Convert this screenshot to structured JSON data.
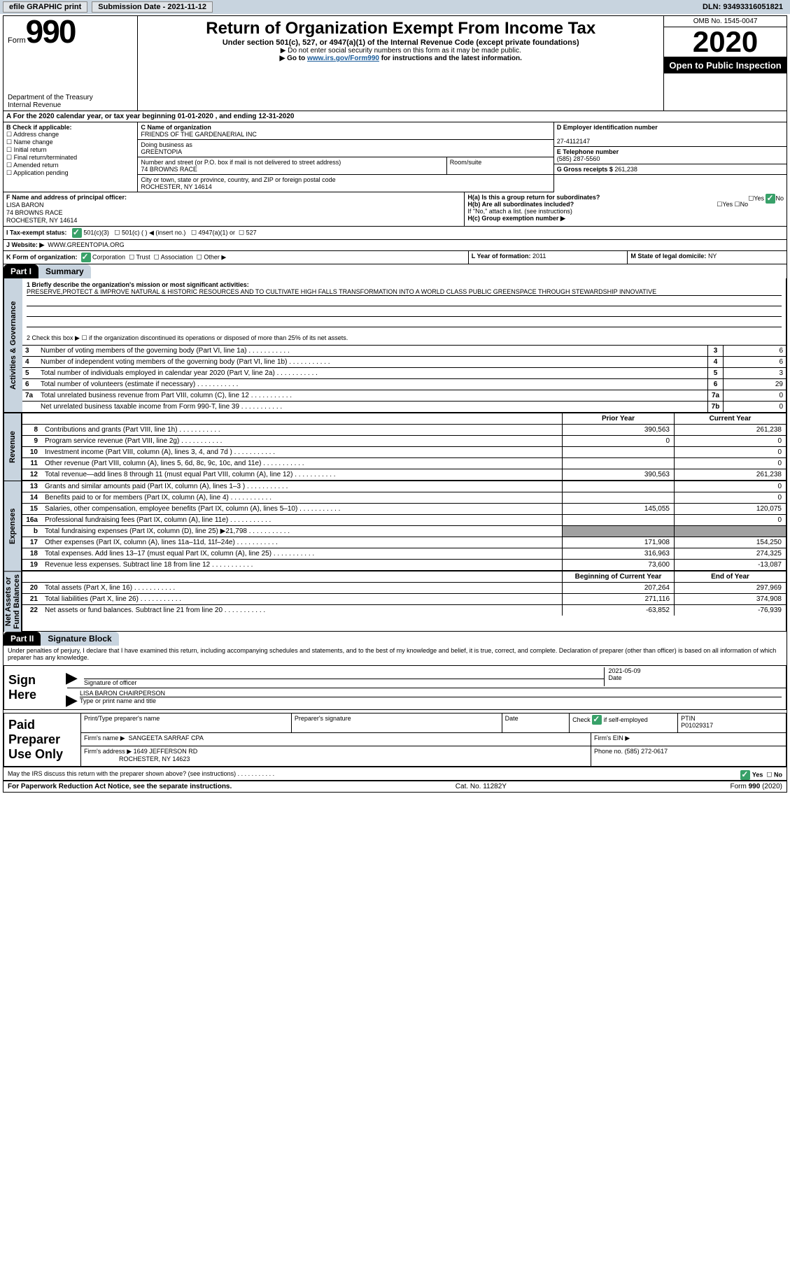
{
  "top": {
    "efile": "efile GRAPHIC print",
    "subdate_label": "Submission Date -",
    "subdate": "2021-11-12",
    "dln_label": "DLN:",
    "dln": "93493316051821"
  },
  "header": {
    "form_word": "Form",
    "form_num": "990",
    "dept": "Department of the Treasury\nInternal Revenue",
    "title": "Return of Organization Exempt From Income Tax",
    "subtitle": "Under section 501(c), 527, or 4947(a)(1) of the Internal Revenue Code (except private foundations)",
    "note1": "▶ Do not enter social security numbers on this form as it may be made public.",
    "note2a": "▶ Go to ",
    "note2link": "www.irs.gov/Form990",
    "note2b": " for instructions and the latest information.",
    "omb": "OMB No. 1545-0047",
    "year": "2020",
    "open": "Open to Public Inspection"
  },
  "period": {
    "line": "A For the 2020 calendar year, or tax year beginning 01-01-2020   , and ending 12-31-2020"
  },
  "boxB": {
    "intro": "B Check if applicable:",
    "opts": [
      "Address change",
      "Name change",
      "Initial return",
      "Final return/terminated",
      "Amended return",
      "Application pending"
    ]
  },
  "boxC": {
    "label": "C Name of organization",
    "name": "FRIENDS OF THE GARDENAERIAL INC",
    "dba_label": "Doing business as",
    "dba": "GREENTOPIA",
    "addr_label": "Number and street (or P.O. box if mail is not delivered to street address)",
    "room_label": "Room/suite",
    "addr": "74 BROWNS RACE",
    "city_label": "City or town, state or province, country, and ZIP or foreign postal code",
    "city": "ROCHESTER, NY  14614"
  },
  "boxD": {
    "label": "D Employer identification number",
    "val": "27-4112147"
  },
  "boxE": {
    "label": "E Telephone number",
    "val": "(585) 287-5560"
  },
  "boxG": {
    "label": "G Gross receipts $",
    "val": "261,238"
  },
  "boxF": {
    "label": "F Name and address of principal officer:",
    "name": "LISA BARON",
    "addr": "74 BROWNS RACE\nROCHESTER, NY  14614"
  },
  "boxH": {
    "a": "H(a)  Is this a group return for subordinates?",
    "a_yes": "Yes",
    "a_no": "No",
    "b": "H(b)  Are all subordinates included?",
    "b_yes": "Yes",
    "b_no": "No",
    "b_note": "If \"No,\" attach a list. (see instructions)",
    "c": "H(c)  Group exemption number ▶"
  },
  "boxI": {
    "label": "I    Tax-exempt status:",
    "o1": "501(c)(3)",
    "o2": "501(c) (  ) ◀ (insert no.)",
    "o3": "4947(a)(1) or",
    "o4": "527"
  },
  "boxJ": {
    "label": "J    Website: ▶",
    "val": "WWW.GREENTOPIA.ORG"
  },
  "boxK": {
    "label": "K Form of organization:",
    "c": "Corporation",
    "t": "Trust",
    "a": "Association",
    "o": "Other ▶"
  },
  "boxL": {
    "label": "L Year of formation:",
    "val": "2011"
  },
  "boxM": {
    "label": "M State of legal domicile:",
    "val": "NY"
  },
  "partI": {
    "title": "Part I",
    "section": "Summary",
    "line1_label": "1 Briefly describe the organization's mission or most significant activities:",
    "line1_text": "PRESERVE,PROTECT & IMPROVE NATURAL & HISTORIC RESOURCES AND TO CULTIVATE HIGH FALLS TRANSFORMATION INTO A WORLD CLASS PUBLIC GREENSPACE THROUGH STEWARDSHIP INNOVATIVE",
    "line2": "2   Check this box ▶ ☐  if the organization discontinued its operations or disposed of more than 25% of its net assets."
  },
  "gov_rows": [
    {
      "n": "3",
      "l": "Number of voting members of the governing body (Part VI, line 1a)",
      "box": "3",
      "v": "6"
    },
    {
      "n": "4",
      "l": "Number of independent voting members of the governing body (Part VI, line 1b)",
      "box": "4",
      "v": "6"
    },
    {
      "n": "5",
      "l": "Total number of individuals employed in calendar year 2020 (Part V, line 2a)",
      "box": "5",
      "v": "3"
    },
    {
      "n": "6",
      "l": "Total number of volunteers (estimate if necessary)",
      "box": "6",
      "v": "29"
    },
    {
      "n": "7a",
      "l": "Total unrelated business revenue from Part VIII, column (C), line 12",
      "box": "7a",
      "v": "0"
    },
    {
      "n": "",
      "l": "Net unrelated business taxable income from Form 990-T, line 39",
      "box": "7b",
      "v": "0"
    }
  ],
  "sections": {
    "revenue": {
      "label": "Revenue",
      "hdr_py": "Prior Year",
      "hdr_cy": "Current Year",
      "rows": [
        {
          "n": "8",
          "l": "Contributions and grants (Part VIII, line 1h)",
          "py": "390,563",
          "cy": "261,238"
        },
        {
          "n": "9",
          "l": "Program service revenue (Part VIII, line 2g)",
          "py": "0",
          "cy": "0"
        },
        {
          "n": "10",
          "l": "Investment income (Part VIII, column (A), lines 3, 4, and 7d )",
          "py": "",
          "cy": "0"
        },
        {
          "n": "11",
          "l": "Other revenue (Part VIII, column (A), lines 5, 6d, 8c, 9c, 10c, and 11e)",
          "py": "",
          "cy": "0"
        },
        {
          "n": "12",
          "l": "Total revenue—add lines 8 through 11 (must equal Part VIII, column (A), line 12)",
          "py": "390,563",
          "cy": "261,238"
        }
      ]
    },
    "expenses": {
      "label": "Expenses",
      "rows": [
        {
          "n": "13",
          "l": "Grants and similar amounts paid (Part IX, column (A), lines 1–3 )",
          "py": "",
          "cy": "0"
        },
        {
          "n": "14",
          "l": "Benefits paid to or for members (Part IX, column (A), line 4)",
          "py": "",
          "cy": "0"
        },
        {
          "n": "15",
          "l": "Salaries, other compensation, employee benefits (Part IX, column (A), lines 5–10)",
          "py": "145,055",
          "cy": "120,075"
        },
        {
          "n": "16a",
          "l": "Professional fundraising fees (Part IX, column (A), line 11e)",
          "py": "",
          "cy": "0"
        },
        {
          "n": "b",
          "l": "Total fundraising expenses (Part IX, column (D), line 25) ▶21,798",
          "py": "GRAY",
          "cy": "GRAY"
        },
        {
          "n": "17",
          "l": "Other expenses (Part IX, column (A), lines 11a–11d, 11f–24e)",
          "py": "171,908",
          "cy": "154,250"
        },
        {
          "n": "18",
          "l": "Total expenses. Add lines 13–17 (must equal Part IX, column (A), line 25)",
          "py": "316,963",
          "cy": "274,325"
        },
        {
          "n": "19",
          "l": "Revenue less expenses. Subtract line 18 from line 12",
          "py": "73,600",
          "cy": "-13,087"
        }
      ]
    },
    "net": {
      "label": "Net Assets or\nFund Balances",
      "hdr_py": "Beginning of Current Year",
      "hdr_cy": "End of Year",
      "rows": [
        {
          "n": "20",
          "l": "Total assets (Part X, line 16)",
          "py": "207,264",
          "cy": "297,969"
        },
        {
          "n": "21",
          "l": "Total liabilities (Part X, line 26)",
          "py": "271,116",
          "cy": "374,908"
        },
        {
          "n": "22",
          "l": "Net assets or fund balances. Subtract line 21 from line 20",
          "py": "-63,852",
          "cy": "-76,939"
        }
      ]
    }
  },
  "partII": {
    "label": "Part II",
    "title": "Signature Block",
    "declare": "Under penalties of perjury, I declare that I have examined this return, including accompanying schedules and statements, and to the best of my knowledge and belief, it is true, correct, and complete. Declaration of preparer (other than officer) is based on all information of which preparer has any knowledge."
  },
  "sign": {
    "side": "Sign Here",
    "sigline": "Signature of officer",
    "date": "2021-05-09",
    "date_label": "Date",
    "name": "LISA BARON CHAIRPERSON",
    "name_label": "Type or print name and title"
  },
  "prep": {
    "side": "Paid Preparer Use Only",
    "c1": "Print/Type preparer's name",
    "c2": "Preparer's signature",
    "c3": "Date",
    "c4": "Check ☑ if self-employed",
    "c5_label": "PTIN",
    "c5": "P01029317",
    "firm_label": "Firm's name  ▶",
    "firm": "SANGEETA SARRAF CPA",
    "ein": "Firm's EIN ▶",
    "faddr_label": "Firm's address ▶",
    "faddr": "1649 JEFFERSON RD",
    "faddr2": "ROCHESTER, NY  14623",
    "phone_label": "Phone no.",
    "phone": "(585) 272-0617"
  },
  "discuss": {
    "q": "May the IRS discuss this return with the preparer shown above? (see instructions)",
    "yes": "Yes",
    "no": "No"
  },
  "footer": {
    "l": "For Paperwork Reduction Act Notice, see the separate instructions.",
    "m": "Cat. No. 11282Y",
    "r": "Form 990 (2020)"
  },
  "colors": {
    "bar": "#c8d4df",
    "line": "#000000",
    "link": "#1a5c9a",
    "check": "#38a169",
    "gray": "#a0a0a0"
  }
}
